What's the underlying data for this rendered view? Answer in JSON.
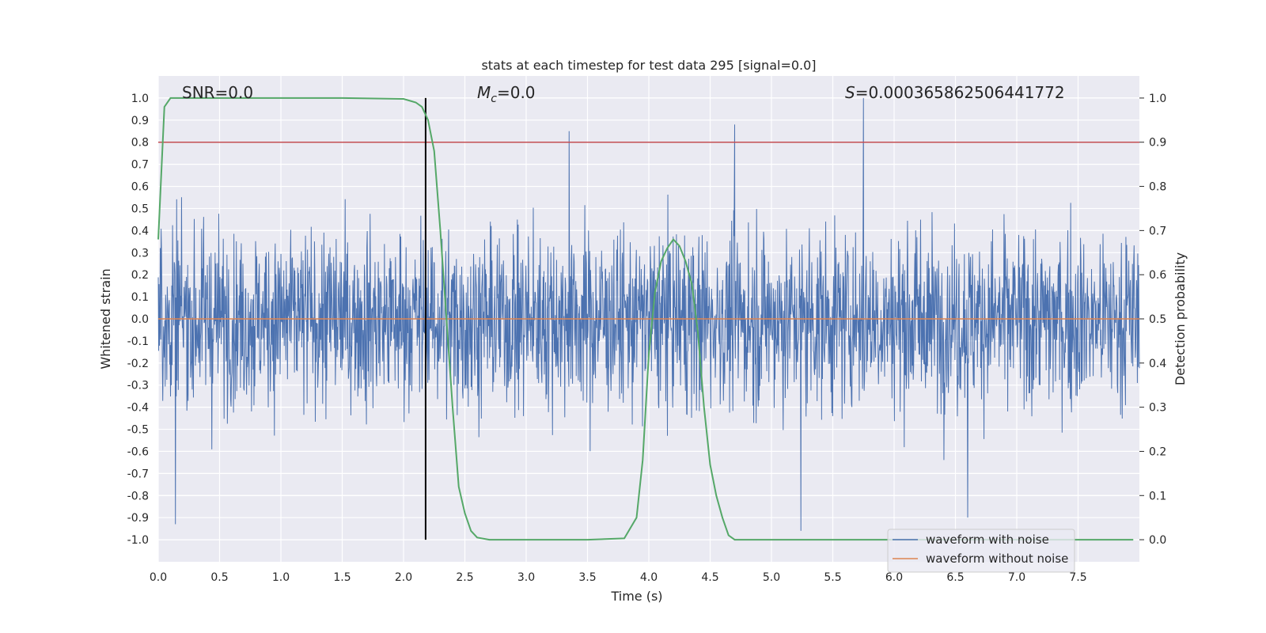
{
  "chart_data": {
    "type": "line",
    "title": "stats at each timestep for test data 295 [signal=0.0]",
    "xlabel": "Time (s)",
    "ylabel": "Whitened strain",
    "y2label": "Detection probability",
    "xlim": [
      0.0,
      8.0
    ],
    "ylim": [
      -1.1,
      1.1
    ],
    "y2lim": [
      -0.05,
      1.05
    ],
    "x_ticks": [
      "0.0",
      "0.5",
      "1.0",
      "1.5",
      "2.0",
      "2.5",
      "3.0",
      "3.5",
      "4.0",
      "4.5",
      "5.0",
      "5.5",
      "6.0",
      "6.5",
      "7.0",
      "7.5"
    ],
    "y_ticks": [
      "1.0",
      "0.9",
      "0.8",
      "0.7",
      "0.6",
      "0.5",
      "0.4",
      "0.3",
      "0.2",
      "0.1",
      "0.0",
      "-0.1",
      "-0.2",
      "-0.3",
      "-0.4",
      "-0.5",
      "-0.6",
      "-0.7",
      "-0.8",
      "-0.9",
      "-1.0"
    ],
    "y2_ticks": [
      "1.0",
      "0.9",
      "0.8",
      "0.7",
      "0.6",
      "0.5",
      "0.4",
      "0.3",
      "0.2",
      "0.1",
      "0.0"
    ],
    "annotations": {
      "snr": "SNR=0.0",
      "mc_prefix": "M",
      "mc_sub": "c",
      "mc_suffix": "=0.0",
      "s_prefix": "S",
      "s_suffix": "=0.000365862506441772"
    },
    "threshold": 0.9,
    "vline_x": 2.18,
    "legend_position": "lower right",
    "grid": true,
    "colors": {
      "background": "#eaeaf2",
      "noisy": "#4c72b0",
      "clean": "#dd8452",
      "probability": "#55a868",
      "threshold": "#c44e52",
      "vline": "#000000"
    },
    "series": [
      {
        "name": "waveform with noise",
        "note": "dense whitened noise, amplitude roughly within ±1.0",
        "peaks": [
          {
            "x": 0.14,
            "y": -0.93
          },
          {
            "x": 3.35,
            "y": 0.85
          },
          {
            "x": 4.7,
            "y": 0.88
          },
          {
            "x": 5.24,
            "y": -0.96
          },
          {
            "x": 5.75,
            "y": 1.0
          },
          {
            "x": 6.6,
            "y": -0.9
          }
        ]
      },
      {
        "name": "waveform without noise",
        "values": [
          [
            0.0,
            0.0
          ],
          [
            8.0,
            0.0
          ]
        ]
      },
      {
        "name": "detection probability",
        "axis": "right",
        "points": [
          [
            0.0,
            0.68
          ],
          [
            0.05,
            0.98
          ],
          [
            0.1,
            1.0
          ],
          [
            0.5,
            1.0
          ],
          [
            1.0,
            1.0
          ],
          [
            1.5,
            1.0
          ],
          [
            2.0,
            0.998
          ],
          [
            2.1,
            0.99
          ],
          [
            2.15,
            0.98
          ],
          [
            2.2,
            0.95
          ],
          [
            2.25,
            0.88
          ],
          [
            2.3,
            0.7
          ],
          [
            2.35,
            0.5
          ],
          [
            2.4,
            0.3
          ],
          [
            2.45,
            0.12
          ],
          [
            2.5,
            0.06
          ],
          [
            2.55,
            0.02
          ],
          [
            2.6,
            0.005
          ],
          [
            2.7,
            0.0
          ],
          [
            3.0,
            0.0
          ],
          [
            3.5,
            0.0
          ],
          [
            3.8,
            0.003
          ],
          [
            3.9,
            0.05
          ],
          [
            3.95,
            0.18
          ],
          [
            4.0,
            0.42
          ],
          [
            4.05,
            0.56
          ],
          [
            4.1,
            0.63
          ],
          [
            4.15,
            0.66
          ],
          [
            4.2,
            0.68
          ],
          [
            4.25,
            0.665
          ],
          [
            4.3,
            0.63
          ],
          [
            4.35,
            0.58
          ],
          [
            4.4,
            0.47
          ],
          [
            4.45,
            0.3
          ],
          [
            4.5,
            0.17
          ],
          [
            4.55,
            0.1
          ],
          [
            4.6,
            0.05
          ],
          [
            4.65,
            0.01
          ],
          [
            4.7,
            0.0
          ],
          [
            5.0,
            0.0
          ],
          [
            6.0,
            0.0
          ],
          [
            7.0,
            0.0
          ],
          [
            7.95,
            0.0
          ]
        ]
      }
    ]
  }
}
